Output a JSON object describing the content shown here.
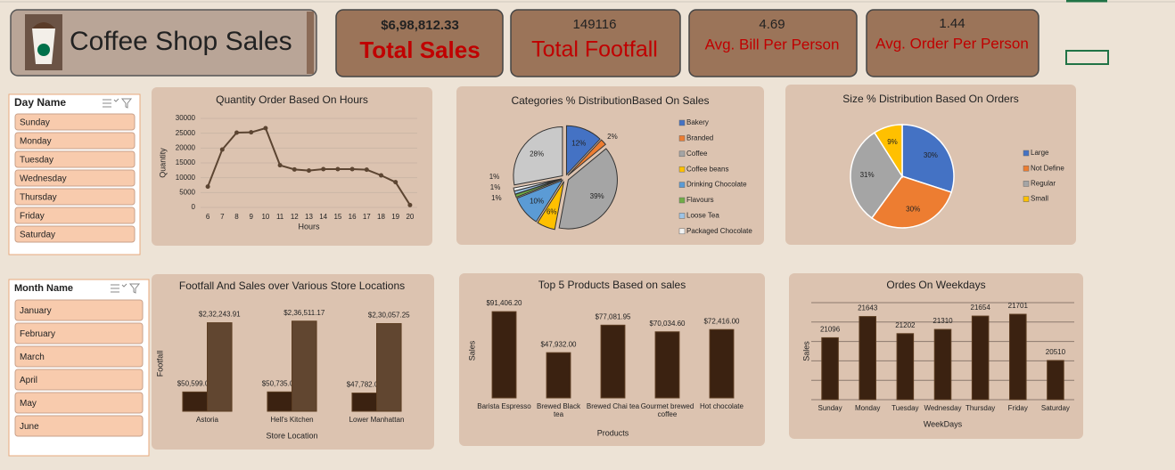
{
  "header": {
    "title": "Coffee Shop Sales"
  },
  "kpis": [
    {
      "value": "$6,98,812.33",
      "label": "Total Sales"
    },
    {
      "value": "149116",
      "label": "Total Footfall"
    },
    {
      "value": "4.69",
      "label": "Avg. Bill Per Person"
    },
    {
      "value": "1.44",
      "label": "Avg. Order Per Person"
    }
  ],
  "slicers": [
    {
      "title": "Day Name",
      "items": [
        "Sunday",
        "Monday",
        "Tuesday",
        "Wednesday",
        "Thursday",
        "Friday",
        "Saturday"
      ]
    },
    {
      "title": "Month Name",
      "items": [
        "January",
        "February",
        "March",
        "April",
        "May",
        "June"
      ]
    }
  ],
  "chart_data": [
    {
      "type": "line",
      "title": "Quantity Order Based On Hours",
      "xlabel": "Hours",
      "ylabel": "Quantity",
      "x": [
        6,
        7,
        8,
        9,
        10,
        11,
        12,
        13,
        14,
        15,
        16,
        17,
        18,
        19,
        20
      ],
      "values": [
        7000,
        19500,
        25200,
        25300,
        26700,
        14200,
        12800,
        12400,
        12900,
        12900,
        12900,
        12700,
        10800,
        8500,
        800
      ],
      "color": "#5c4532",
      "xlim": [
        5.5,
        20.5
      ],
      "xticks": [
        6,
        7,
        8,
        9,
        10,
        11,
        12,
        13,
        14,
        15,
        16,
        17,
        18,
        19,
        20
      ],
      "ylim": [
        0,
        30000
      ],
      "yticks": [
        0,
        5000,
        10000,
        15000,
        20000,
        25000,
        30000
      ],
      "grid": true
    },
    {
      "type": "pie",
      "title": "Categories % DistributionBased On Sales",
      "categories": [
        "Bakery",
        "Branded",
        "Coffee",
        "Coffee beans",
        "Drinking Chocolate",
        "Flavours",
        "Loose Tea",
        "Packaged Chocolate",
        null
      ],
      "values": [
        12,
        2,
        39,
        6,
        10,
        1,
        1,
        1,
        28
      ],
      "value_labels": [
        "12%",
        "2%",
        "39%",
        "6%",
        "10%",
        "1%",
        "1%",
        "1%",
        "28%"
      ],
      "colors": [
        "#4472c4",
        "#ed7d31",
        "#a5a5a5",
        "#ffc000",
        "#5b9bd5",
        "#70ad47",
        "#9dc3e6",
        "#f2f2f2",
        "#c9c9c9"
      ],
      "explode": true,
      "legend": "right"
    },
    {
      "type": "pie",
      "title": "Size % Distribution Based On Orders",
      "categories": [
        "Large",
        "Not Define",
        "Regular",
        "Small"
      ],
      "values": [
        30,
        30,
        31,
        9
      ],
      "value_labels": [
        "30%",
        "30%",
        "31%",
        "9%"
      ],
      "colors": [
        "#4472c4",
        "#ed7d31",
        "#a5a5a5",
        "#ffc000"
      ],
      "explode": false,
      "legend": "right"
    },
    {
      "type": "bar",
      "title": "Footfall And Sales over Various Store Locations",
      "xlabel": "Store Location",
      "ylabel": "Footfall",
      "categories": [
        "Astoria",
        "Hell's Kitchen",
        "Lower Manhattan"
      ],
      "series": [
        {
          "color": "#3b2211",
          "values": [
            50599,
            50735,
            47782
          ],
          "value_labels": [
            "$50,599.00",
            "$50,735.00",
            "$47,782.00"
          ]
        },
        {
          "color": "#614630",
          "values": [
            232243.91,
            236511.17,
            230057.25
          ],
          "value_labels": [
            "$2,32,243.91",
            "$2,36,511.17",
            "$2,30,057.25"
          ]
        }
      ],
      "ylim": [
        0,
        250000
      ]
    },
    {
      "type": "bar",
      "title": "Top 5 Products Based on sales",
      "xlabel": "Products",
      "ylabel": "Sales",
      "categories": [
        "Barista Espresso",
        "Brewed Black tea",
        "Brewed Chai tea",
        "Gourmet brewed coffee",
        "Hot chocolate"
      ],
      "values": [
        91406.2,
        47932,
        77081.95,
        70034.6,
        72416
      ],
      "value_labels": [
        "$91,406.20",
        "$47,932.00",
        "$77,081.95",
        "$70,034.60",
        "$72,416.00"
      ],
      "color": "#3b2211",
      "ylim": [
        0,
        100000
      ]
    },
    {
      "type": "bar",
      "title": "Ordes On Weekdays",
      "xlabel": "WeekDays",
      "ylabel": "Sales",
      "categories": [
        "Sunday",
        "Monday",
        "Tuesday",
        "Wednesday",
        "Thursday",
        "Friday",
        "Saturday"
      ],
      "values": [
        21096,
        21643,
        21202,
        21310,
        21654,
        21701,
        20510
      ],
      "color": "#3b2211",
      "ylim": [
        19500,
        22000
      ],
      "yticks": [
        19500,
        20000,
        20500,
        21000,
        21500,
        22000
      ],
      "grid": true,
      "ytick_labels": false
    }
  ]
}
